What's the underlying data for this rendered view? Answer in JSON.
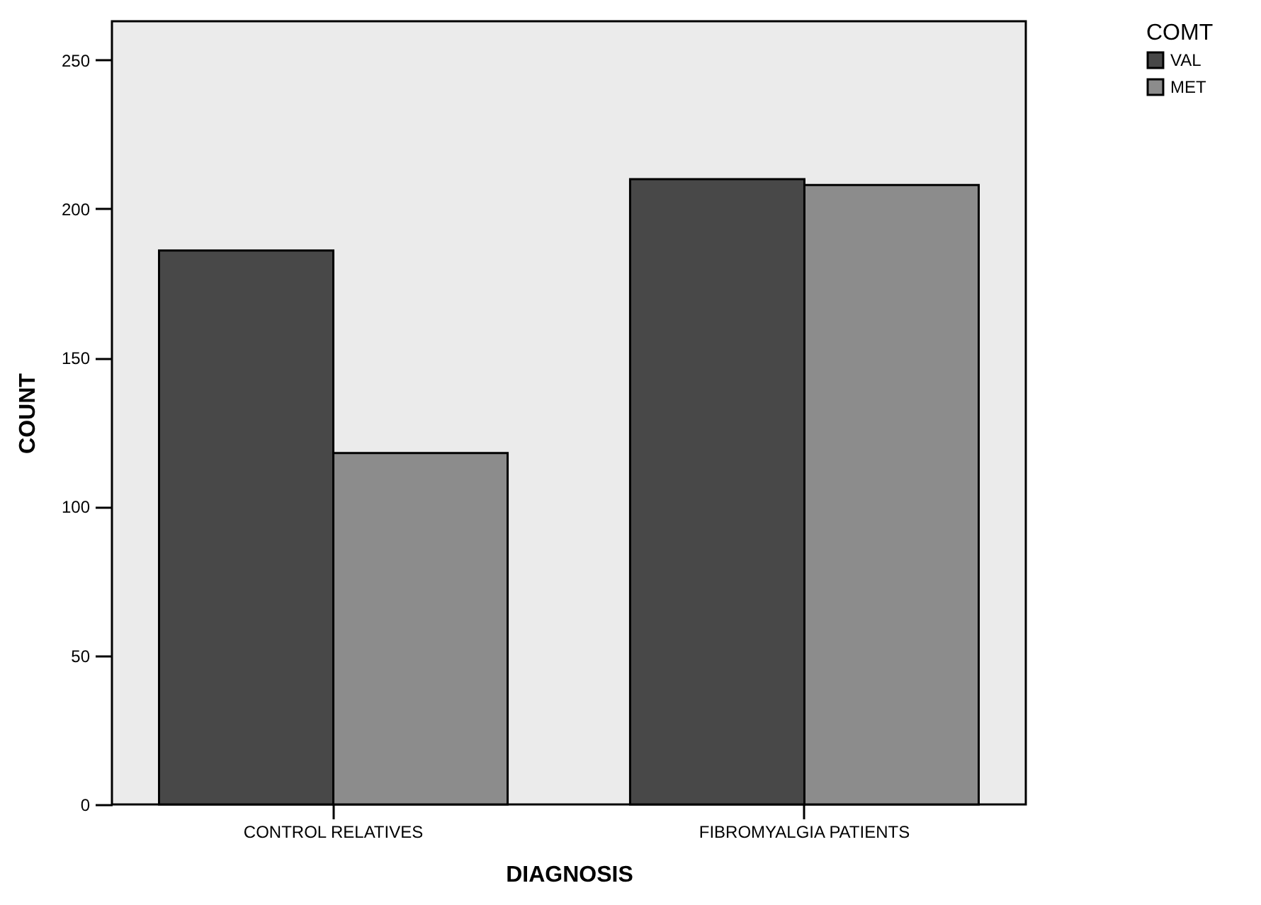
{
  "chart_data": {
    "type": "bar",
    "xlabel": "DIAGNOSIS",
    "ylabel": "COUNT",
    "legend_title": "COMT",
    "categories": [
      "CONTROL RELATIVES",
      "FIBROMYALGIA PATIENTS"
    ],
    "series": [
      {
        "name": "VAL",
        "color": "#484848",
        "values": [
          186,
          210
        ]
      },
      {
        "name": "MET",
        "color": "#8c8c8c",
        "values": [
          118,
          208
        ]
      }
    ],
    "ylim": [
      0,
      263
    ],
    "yticks": [
      0,
      50,
      100,
      150,
      200,
      250
    ],
    "grid": false,
    "legend": "top right"
  }
}
